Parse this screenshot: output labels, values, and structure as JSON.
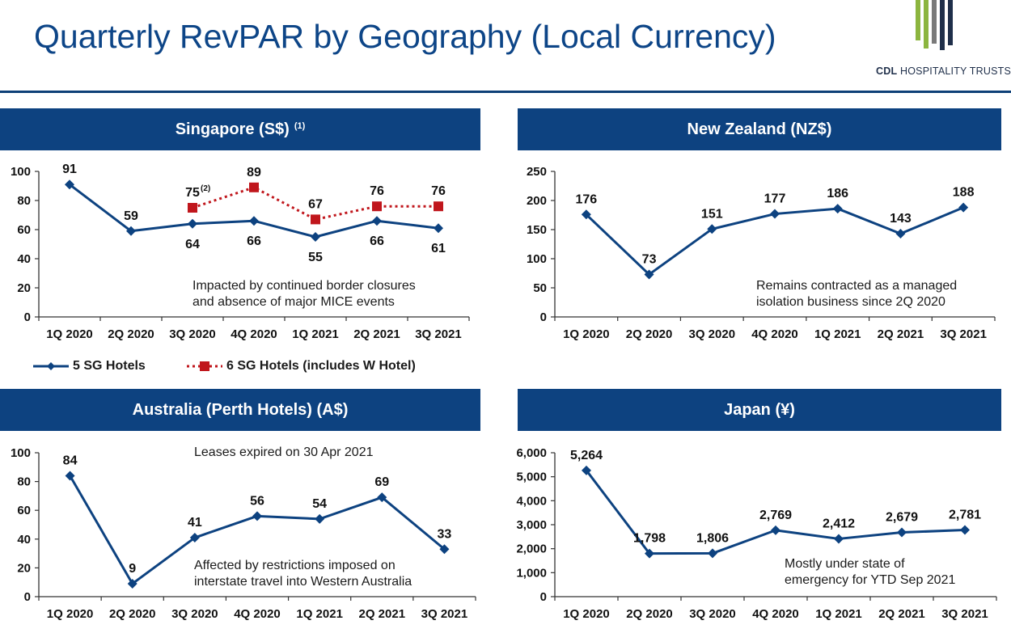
{
  "header": {
    "title": "Quarterly RevPAR by Geography (Local Currency)",
    "logo_bold": "CDL",
    "logo_rest": "HOSPITALITY TRUSTS"
  },
  "colors": {
    "primary": "#0d4280",
    "series2": "#c0161c",
    "logo_green": "#8cb53f",
    "logo_grey": "#7a7a7a",
    "logo_navy": "#1f2f4a"
  },
  "panels": {
    "singapore": {
      "title": "Singapore (S$)",
      "footnote": "(1)",
      "note_line1": "Impacted by continued border closures",
      "note_line2": "and absence of major MICE events"
    },
    "newzealand": {
      "title": "New Zealand (NZ$)",
      "note_line1": "Remains contracted as a managed",
      "note_line2": "isolation business since 2Q 2020"
    },
    "australia": {
      "title": "Australia (Perth Hotels) (A$)",
      "note_top": "Leases expired on 30 Apr 2021",
      "note_line1": "Affected by restrictions imposed on",
      "note_line2": "interstate travel into Western Australia"
    },
    "japan": {
      "title": "Japan (¥)",
      "note_line1": "Mostly under state of",
      "note_line2": "emergency for YTD Sep 2021"
    }
  },
  "legend": {
    "series1": "5 SG Hotels",
    "series2": "6 SG Hotels (includes W Hotel)"
  },
  "chart_data": [
    {
      "id": "singapore",
      "type": "line",
      "title": "Singapore (S$)",
      "categories": [
        "1Q 2020",
        "2Q 2020",
        "3Q 2020",
        "4Q 2020",
        "1Q 2021",
        "2Q 2021",
        "3Q 2021"
      ],
      "ylim": [
        0,
        100
      ],
      "yticks": [
        "0",
        "20",
        "40",
        "60",
        "80",
        "100"
      ],
      "series": [
        {
          "name": "5 SG Hotels",
          "values": [
            91,
            59,
            64,
            66,
            55,
            66,
            61
          ],
          "labels": [
            "91",
            "59",
            "64",
            "66",
            "55",
            "66",
            "61"
          ],
          "marker": "diamond",
          "color": "#0d4280",
          "style": "solid",
          "label_side": [
            "above",
            "above",
            "below",
            "below",
            "below",
            "below",
            "below"
          ]
        },
        {
          "name": "6 SG Hotels (includes W Hotel)",
          "values": [
            null,
            null,
            75,
            89,
            67,
            76,
            76
          ],
          "labels": [
            null,
            null,
            "75",
            "89",
            "67",
            "76",
            "76"
          ],
          "marker": "square",
          "color": "#c0161c",
          "style": "dotted",
          "label_side": [
            "above",
            "above",
            "above",
            "above",
            "above",
            "above",
            "above"
          ],
          "label_notes": [
            null,
            null,
            "(2)",
            null,
            null,
            null,
            null
          ]
        }
      ]
    },
    {
      "id": "newzealand",
      "type": "line",
      "title": "New Zealand (NZ$)",
      "categories": [
        "1Q 2020",
        "2Q 2020",
        "3Q 2020",
        "4Q 2020",
        "1Q 2021",
        "2Q 2021",
        "3Q 2021"
      ],
      "ylim": [
        0,
        250
      ],
      "yticks": [
        "0",
        "50",
        "100",
        "150",
        "200",
        "250"
      ],
      "series": [
        {
          "name": "New Zealand",
          "values": [
            176,
            73,
            151,
            177,
            186,
            143,
            188
          ],
          "labels": [
            "176",
            "73",
            "151",
            "177",
            "186",
            "143",
            "188"
          ],
          "marker": "diamond",
          "color": "#0d4280",
          "style": "solid",
          "label_side": [
            "above",
            "above",
            "above",
            "above",
            "above",
            "above",
            "above"
          ]
        }
      ]
    },
    {
      "id": "australia",
      "type": "line",
      "title": "Australia (Perth Hotels) (A$)",
      "categories": [
        "1Q 2020",
        "2Q 2020",
        "3Q 2020",
        "4Q 2020",
        "1Q 2021",
        "2Q 2021",
        "3Q 2021"
      ],
      "ylim": [
        0,
        100
      ],
      "yticks": [
        "0",
        "20",
        "40",
        "60",
        "80",
        "100"
      ],
      "series": [
        {
          "name": "Australia",
          "values": [
            84,
            9,
            41,
            56,
            54,
            69,
            33
          ],
          "labels": [
            "84",
            "9",
            "41",
            "56",
            "54",
            "69",
            "33"
          ],
          "marker": "diamond",
          "color": "#0d4280",
          "style": "solid",
          "label_side": [
            "above",
            "above",
            "above",
            "above",
            "above",
            "above",
            "above"
          ]
        }
      ]
    },
    {
      "id": "japan",
      "type": "line",
      "title": "Japan (¥)",
      "categories": [
        "1Q 2020",
        "2Q 2020",
        "3Q 2020",
        "4Q 2020",
        "1Q 2021",
        "2Q 2021",
        "3Q 2021"
      ],
      "ylim": [
        0,
        6000
      ],
      "yticks": [
        "0",
        "1,000",
        "2,000",
        "3,000",
        "4,000",
        "5,000",
        "6,000"
      ],
      "series": [
        {
          "name": "Japan",
          "values": [
            5264,
            1798,
            1806,
            2769,
            2412,
            2679,
            2781
          ],
          "labels": [
            "5,264",
            "1,798",
            "1,806",
            "2,769",
            "2,412",
            "2,679",
            "2,781"
          ],
          "marker": "diamond",
          "color": "#0d4280",
          "style": "solid",
          "label_side": [
            "above",
            "above",
            "above",
            "above",
            "above",
            "above",
            "above"
          ]
        }
      ]
    }
  ]
}
